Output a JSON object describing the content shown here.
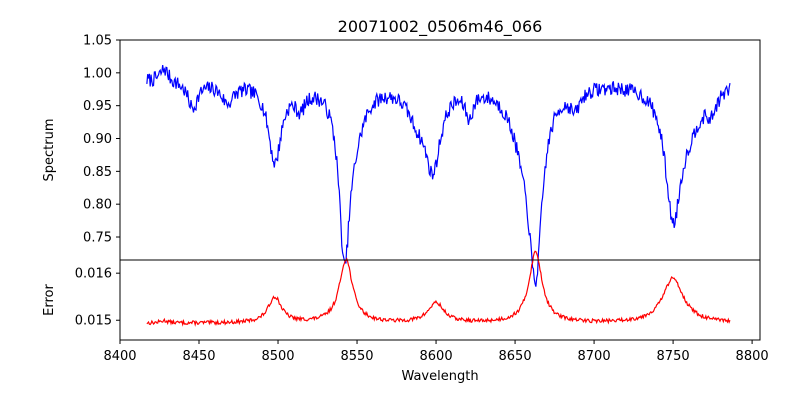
{
  "chart_data": [
    {
      "type": "line",
      "title": "20071002_0506m46_066",
      "xlabel": "",
      "ylabel": "Spectrum",
      "xlim": [
        8400,
        8805
      ],
      "ylim": [
        0.715,
        1.05
      ],
      "yticks": [
        0.75,
        0.8,
        0.85,
        0.9,
        0.95,
        1.0,
        1.05
      ],
      "ytick_labels": [
        "0.75",
        "0.80",
        "0.85",
        "0.90",
        "0.95",
        "1.00",
        "1.05"
      ],
      "x_range": [
        8417,
        8786
      ],
      "baseline": 0.99,
      "series": [
        {
          "color": "#0000ff",
          "features": [
            {
              "center": 8428,
              "depth": -0.02,
              "width": 3
            },
            {
              "center": 8446,
              "depth": 0.04,
              "width": 4
            },
            {
              "center": 8468,
              "depth": 0.03,
              "width": 5
            },
            {
              "center": 8498,
              "depth": 0.12,
              "width": 5
            },
            {
              "center": 8514,
              "depth": 0.03,
              "width": 4
            },
            {
              "center": 8542,
              "depth": 0.24,
              "width": 4
            },
            {
              "center": 8548,
              "depth": 0.06,
              "width": 8
            },
            {
              "center": 8598,
              "depth": 0.12,
              "width": 6
            },
            {
              "center": 8588,
              "depth": 0.04,
              "width": 8
            },
            {
              "center": 8621,
              "depth": 0.04,
              "width": 3
            },
            {
              "center": 8663,
              "depth": 0.25,
              "width": 5
            },
            {
              "center": 8656,
              "depth": 0.08,
              "width": 10
            },
            {
              "center": 8688,
              "depth": 0.03,
              "width": 4
            },
            {
              "center": 8750,
              "depth": 0.19,
              "width": 6
            },
            {
              "center": 8760,
              "depth": 0.05,
              "width": 10
            },
            {
              "center": 8774,
              "depth": 0.03,
              "width": 4
            }
          ],
          "noise": 0.011
        }
      ]
    },
    {
      "type": "line",
      "title": "",
      "xlabel": "Wavelength",
      "ylabel": "Error",
      "xlim": [
        8400,
        8805
      ],
      "ylim": [
        0.01458,
        0.01628
      ],
      "xticks": [
        8400,
        8450,
        8500,
        8550,
        8600,
        8650,
        8700,
        8750,
        8800
      ],
      "xtick_labels": [
        "8400",
        "8450",
        "8500",
        "8550",
        "8600",
        "8650",
        "8700",
        "8750",
        "8800"
      ],
      "yticks": [
        0.015,
        0.016
      ],
      "ytick_labels": [
        "0.015",
        "0.016"
      ],
      "x_range": [
        8417,
        8786
      ],
      "baseline": 0.014935,
      "series": [
        {
          "color": "#ff0000",
          "features": [
            {
              "center": 8428,
              "depth": 5e-05,
              "width": 3
            },
            {
              "center": 8498,
              "depth": 0.00055,
              "width": 5
            },
            {
              "center": 8543,
              "depth": 0.00135,
              "width": 5
            },
            {
              "center": 8600,
              "depth": 0.00042,
              "width": 6
            },
            {
              "center": 8663,
              "depth": 0.0015,
              "width": 5
            },
            {
              "center": 8750,
              "depth": 0.00095,
              "width": 8
            }
          ],
          "noise": 4e-05
        }
      ]
    }
  ]
}
